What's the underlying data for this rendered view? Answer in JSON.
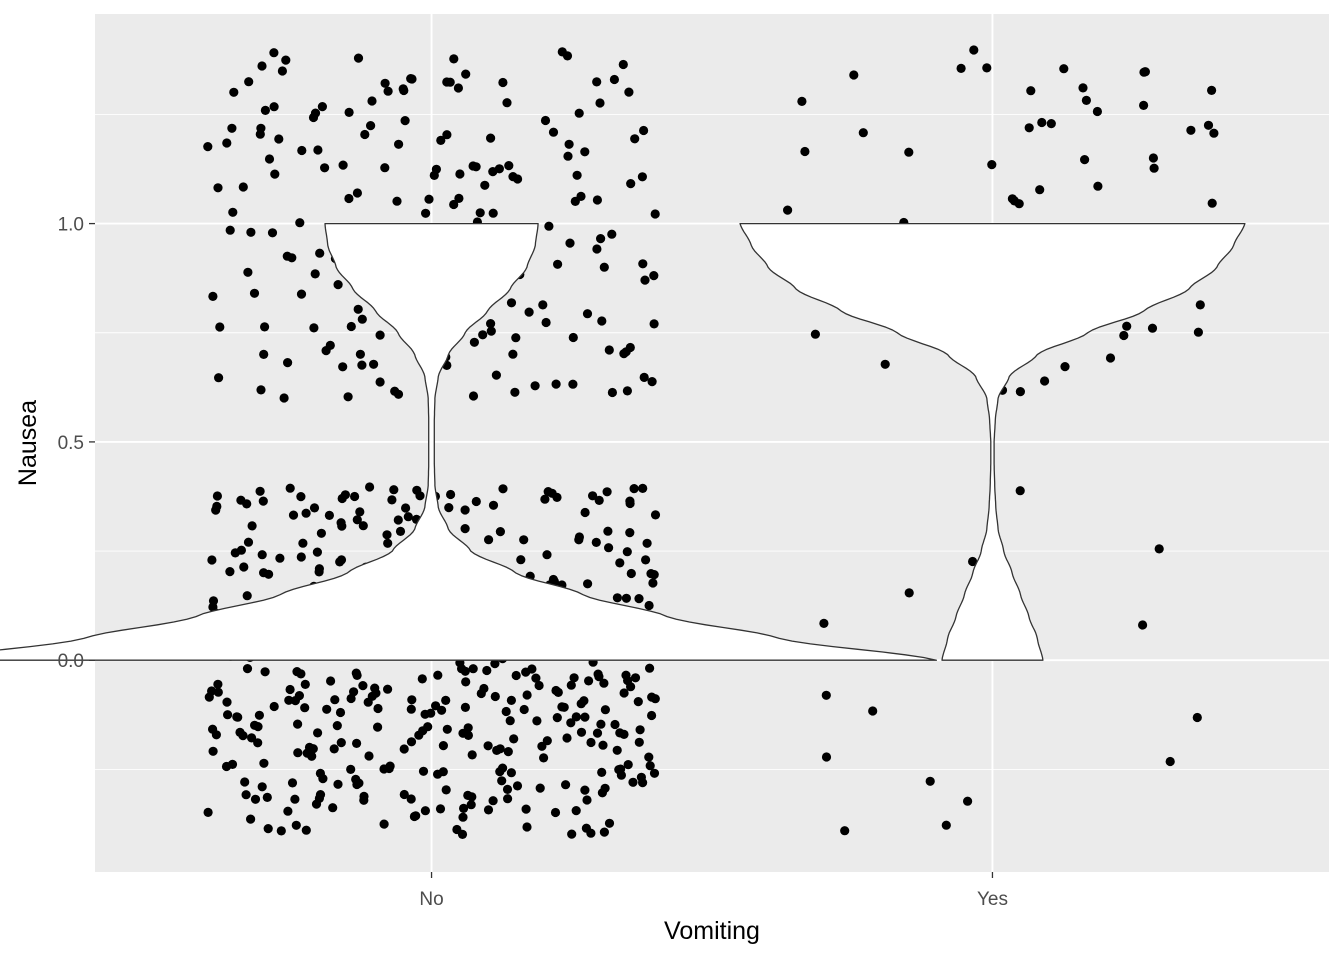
{
  "chart_data": {
    "type": "violin",
    "xlabel": "Vomiting",
    "ylabel": "Nausea",
    "categories": [
      "No",
      "Yes"
    ],
    "y_ticks": [
      0.0,
      0.5,
      1.0
    ],
    "y_tick_labels": [
      "0.0",
      "0.5",
      "1.0"
    ],
    "ylim": [
      -0.485,
      1.48
    ],
    "grid": true,
    "background": "#ebebeb",
    "grid_color": "#ffffff",
    "point_color": "#000000",
    "violin_fill": "#ffffff",
    "violin_stroke": "#333333",
    "jitter_points": [
      {
        "category": "No",
        "n_points_y_1": 190,
        "n_points_y_0": 430,
        "jitter_x": 0.4,
        "jitter_y": 0.4
      },
      {
        "category": "Yes",
        "n_points_y_1": 62,
        "n_points_y_0": 18,
        "jitter_x": 0.4,
        "jitter_y": 0.4
      }
    ],
    "violins": [
      {
        "category": "No",
        "half_width_profile": [
          [
            0.0,
            0.9
          ],
          [
            0.05,
            0.62
          ],
          [
            0.1,
            0.42
          ],
          [
            0.15,
            0.27
          ],
          [
            0.2,
            0.15
          ],
          [
            0.25,
            0.07
          ],
          [
            0.3,
            0.03
          ],
          [
            0.35,
            0.012
          ],
          [
            0.4,
            0.006
          ],
          [
            0.45,
            0.005
          ],
          [
            0.5,
            0.005
          ],
          [
            0.55,
            0.005
          ],
          [
            0.6,
            0.006
          ],
          [
            0.65,
            0.012
          ],
          [
            0.7,
            0.03
          ],
          [
            0.75,
            0.06
          ],
          [
            0.8,
            0.1
          ],
          [
            0.85,
            0.14
          ],
          [
            0.9,
            0.17
          ],
          [
            0.95,
            0.185
          ],
          [
            1.0,
            0.19
          ]
        ]
      },
      {
        "category": "Yes",
        "half_width_profile": [
          [
            0.0,
            0.09
          ],
          [
            0.05,
            0.08
          ],
          [
            0.1,
            0.065
          ],
          [
            0.15,
            0.05
          ],
          [
            0.2,
            0.035
          ],
          [
            0.25,
            0.02
          ],
          [
            0.3,
            0.01
          ],
          [
            0.35,
            0.006
          ],
          [
            0.4,
            0.004
          ],
          [
            0.45,
            0.003
          ],
          [
            0.5,
            0.003
          ],
          [
            0.55,
            0.005
          ],
          [
            0.6,
            0.01
          ],
          [
            0.65,
            0.03
          ],
          [
            0.7,
            0.08
          ],
          [
            0.75,
            0.17
          ],
          [
            0.8,
            0.27
          ],
          [
            0.85,
            0.35
          ],
          [
            0.9,
            0.4
          ],
          [
            0.95,
            0.43
          ],
          [
            1.0,
            0.45
          ]
        ]
      }
    ]
  }
}
